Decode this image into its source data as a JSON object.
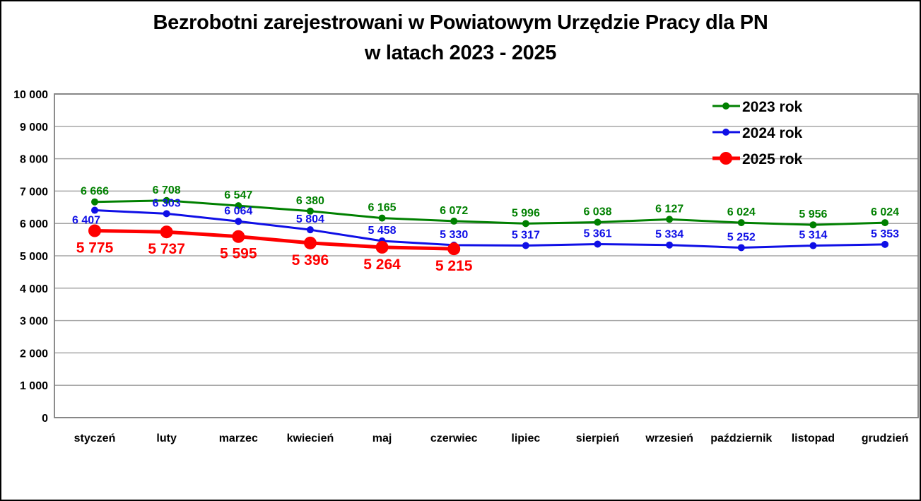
{
  "title": {
    "line1": "Bezrobotni zarejestrowani w Powiatowym Urzędzie Pracy dla PN",
    "line2": "w latach 2023 - 2025"
  },
  "chart_data": {
    "type": "line",
    "title": "Bezrobotni zarejestrowani w Powiatowym Urzędzie Pracy dla PN w latach 2023 - 2025",
    "categories": [
      "styczeń",
      "luty",
      "marzec",
      "kwiecień",
      "maj",
      "czerwiec",
      "lipiec",
      "sierpień",
      "wrzesień",
      "październik",
      "listopad",
      "grudzień"
    ],
    "series": [
      {
        "name": "2023 rok",
        "color": "#008000",
        "line_width": 3,
        "marker_radius": 5,
        "label_position": "above",
        "label_font_size": 16,
        "values": [
          6666,
          6708,
          6547,
          6380,
          6165,
          6072,
          5996,
          6038,
          6127,
          6024,
          5956,
          6024
        ]
      },
      {
        "name": "2024 rok",
        "color": "#0f0fe6",
        "line_width": 3,
        "marker_radius": 5,
        "label_position": "above",
        "label_font_size": 16,
        "label_offsets": {
          "0": {
            "dx": -12,
            "dy": 13
          }
        },
        "values": [
          6407,
          6303,
          6064,
          5804,
          5458,
          5330,
          5317,
          5361,
          5334,
          5252,
          5314,
          5353
        ]
      },
      {
        "name": "2025 rok",
        "color": "#fe0000",
        "line_width": 5,
        "marker_radius": 9,
        "label_position": "below",
        "label_font_size": 21,
        "values": [
          5775,
          5737,
          5595,
          5396,
          5264,
          5215,
          null,
          null,
          null,
          null,
          null,
          null
        ]
      }
    ],
    "ylim": [
      0,
      10000
    ],
    "y_ticks": [
      0,
      1000,
      2000,
      3000,
      4000,
      5000,
      6000,
      7000,
      8000,
      9000,
      10000
    ],
    "y_tick_labels": [
      "0",
      "1 000",
      "2 000",
      "3 000",
      "4 000",
      "5 000",
      "6 000",
      "7 000",
      "8 000",
      "9 000",
      "10 000"
    ],
    "xlabel": "",
    "ylabel": "",
    "grid": "horizontal",
    "legend_position": "top-right",
    "number_format": "space-thousands"
  },
  "colors": {
    "grid": "#a6a6a6",
    "plot_border": "#7f7f7f",
    "text": "#000000",
    "background": "#ffffff",
    "frame_border": "#000000"
  }
}
